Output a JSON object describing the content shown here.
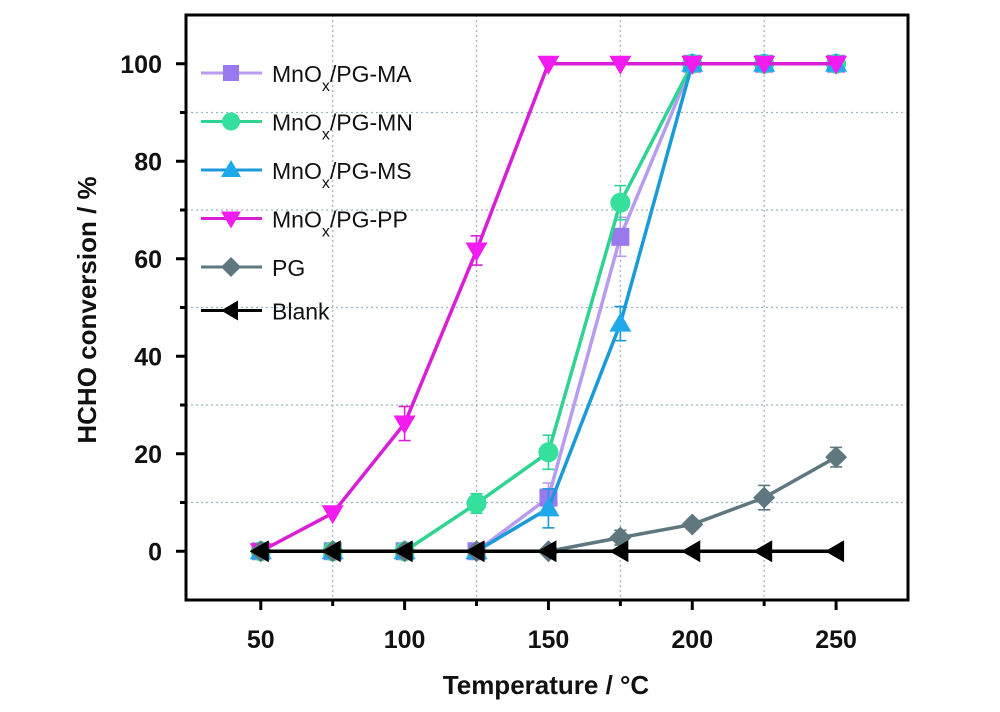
{
  "chart_data": {
    "type": "line",
    "title": "",
    "xlabel": "Temperature / °C",
    "ylabel": "HCHO conversion / %",
    "xlim": [
      24,
      275
    ],
    "ylim": [
      -10,
      110
    ],
    "xticks": [
      50,
      100,
      150,
      200,
      250
    ],
    "yticks": [
      0,
      20,
      40,
      60,
      80,
      100
    ],
    "x_gridlines": [
      75,
      125,
      175,
      225
    ],
    "y_gridlines": [
      10,
      30,
      50,
      70,
      90
    ],
    "grid": true,
    "legend_position": "top-left",
    "x": [
      50,
      75,
      100,
      125,
      150,
      175,
      200,
      225,
      250
    ],
    "series": [
      {
        "name": "MnOx/PG-MA",
        "name_main": "MnO",
        "name_sub": "x",
        "name_rest": "/PG-MA",
        "marker": "square",
        "color": "#9a78ee",
        "line_color": "#b79cf2",
        "values": [
          0,
          0,
          0,
          0,
          11,
          64.5,
          100,
          100,
          100
        ],
        "errors": [
          0,
          0,
          0,
          0,
          3,
          4,
          0,
          0,
          0
        ]
      },
      {
        "name": "MnOx/PG-MN",
        "name_main": "MnO",
        "name_sub": "x",
        "name_rest": "/PG-MN",
        "marker": "circle",
        "color": "#34e09c",
        "line_color": "#2fd492",
        "values": [
          0,
          0,
          0,
          9.8,
          20.3,
          71.5,
          100,
          100,
          100
        ],
        "errors": [
          0,
          0,
          0,
          2,
          3.5,
          3.5,
          0,
          0,
          0
        ]
      },
      {
        "name": "MnOx/PG-MS",
        "name_main": "MnO",
        "name_sub": "x",
        "name_rest": "/PG-MS",
        "marker": "triangle-up",
        "color": "#1ea9ea",
        "line_color": "#1b9ad8",
        "values": [
          0,
          0,
          0,
          0,
          8.8,
          46.7,
          100,
          100,
          100
        ],
        "errors": [
          0,
          0,
          0,
          0,
          4,
          3.5,
          0,
          0,
          0
        ]
      },
      {
        "name": "MnOx/PG-PP",
        "name_main": "MnO",
        "name_sub": "x",
        "name_rest": "/PG-PP",
        "marker": "triangle-down",
        "color": "#f21cf0",
        "line_color": "#d81fd6",
        "values": [
          0,
          7.8,
          26.2,
          61.7,
          100,
          100,
          100,
          100,
          100
        ],
        "errors": [
          0,
          0,
          3.5,
          3,
          0,
          0,
          0,
          0,
          0
        ]
      },
      {
        "name": "PG",
        "name_main": "PG",
        "name_sub": "",
        "name_rest": "",
        "marker": "diamond",
        "color": "#5f7880",
        "line_color": "#5f7880",
        "values": [
          0,
          0,
          0,
          0,
          0,
          2.8,
          5.5,
          11,
          19.3
        ],
        "errors": [
          0,
          0,
          0,
          0,
          0,
          1.5,
          1,
          2.5,
          2
        ]
      },
      {
        "name": "Blank",
        "name_main": "Blank",
        "name_sub": "",
        "name_rest": "",
        "marker": "triangle-left",
        "color": "#000000",
        "line_color": "#000000",
        "values": [
          0,
          0,
          0,
          0,
          0,
          0,
          0,
          0,
          0
        ],
        "errors": [
          0,
          0,
          0,
          0,
          0,
          0,
          0,
          0,
          0
        ]
      }
    ]
  }
}
